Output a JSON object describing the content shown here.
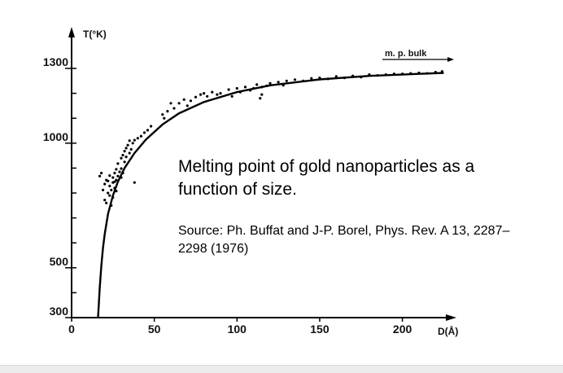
{
  "chart_data": {
    "type": "scatter",
    "ylabel": "T(°K)",
    "xlabel": "D(Å)",
    "xlim": [
      0,
      225
    ],
    "ylim": [
      300,
      1350
    ],
    "x_ticks": [
      0,
      50,
      100,
      150,
      200
    ],
    "x_tick_labels": [
      "0",
      "50",
      "100",
      "150",
      "200"
    ],
    "y_ticks": [
      300,
      500,
      1000,
      1300
    ],
    "y_tick_labels": [
      "300",
      "500",
      "1000",
      "1300"
    ],
    "grid": false,
    "annotations": [
      {
        "text": "m. p. bulk",
        "y": 1336
      }
    ],
    "series": [
      {
        "kind": "points",
        "points": [
          [
            17,
            868
          ],
          [
            18,
            880
          ],
          [
            19,
            812
          ],
          [
            20,
            836
          ],
          [
            20,
            772
          ],
          [
            21,
            852
          ],
          [
            21,
            760
          ],
          [
            22,
            800
          ],
          [
            22,
            848
          ],
          [
            23,
            828
          ],
          [
            23,
            790
          ],
          [
            23,
            870
          ],
          [
            24,
            812
          ],
          [
            24,
            750
          ],
          [
            25,
            842
          ],
          [
            25,
            862
          ],
          [
            25,
            782
          ],
          [
            26,
            820
          ],
          [
            26,
            880
          ],
          [
            26,
            845
          ],
          [
            27,
            808
          ],
          [
            27,
            895
          ],
          [
            27,
            852
          ],
          [
            28,
            868
          ],
          [
            28,
            918
          ],
          [
            29,
            885
          ],
          [
            30,
            898
          ],
          [
            30,
            940
          ],
          [
            31,
            880
          ],
          [
            31,
            952
          ],
          [
            32,
            968
          ],
          [
            32,
            925
          ],
          [
            33,
            980
          ],
          [
            33,
            945
          ],
          [
            34,
            992
          ],
          [
            35,
            960
          ],
          [
            35,
            1010
          ],
          [
            36,
            975
          ],
          [
            37,
            1000
          ],
          [
            38,
            1012
          ],
          [
            40,
            1020
          ],
          [
            42,
            1028
          ],
          [
            44,
            1042
          ],
          [
            46,
            1052
          ],
          [
            48,
            1068
          ],
          [
            38,
            842
          ],
          [
            30,
            862
          ],
          [
            55,
            1115
          ],
          [
            58,
            1128
          ],
          [
            56,
            1100
          ],
          [
            60,
            1160
          ],
          [
            62,
            1140
          ],
          [
            65,
            1160
          ],
          [
            68,
            1175
          ],
          [
            70,
            1150
          ],
          [
            72,
            1170
          ],
          [
            75,
            1185
          ],
          [
            78,
            1195
          ],
          [
            80,
            1200
          ],
          [
            82,
            1188
          ],
          [
            85,
            1205
          ],
          [
            88,
            1195
          ],
          [
            90,
            1200
          ],
          [
            95,
            1215
          ],
          [
            97,
            1188
          ],
          [
            100,
            1220
          ],
          [
            102,
            1205
          ],
          [
            105,
            1225
          ],
          [
            108,
            1212
          ],
          [
            110,
            1220
          ],
          [
            112,
            1235
          ],
          [
            114,
            1180
          ],
          [
            115,
            1225
          ],
          [
            115,
            1195
          ],
          [
            118,
            1230
          ],
          [
            120,
            1240
          ],
          [
            125,
            1245
          ],
          [
            128,
            1232
          ],
          [
            130,
            1250
          ],
          [
            135,
            1255
          ],
          [
            140,
            1250
          ],
          [
            145,
            1260
          ],
          [
            150,
            1262
          ],
          [
            155,
            1258
          ],
          [
            160,
            1268
          ],
          [
            165,
            1262
          ],
          [
            170,
            1270
          ],
          [
            175,
            1265
          ],
          [
            180,
            1275
          ],
          [
            185,
            1272
          ],
          [
            190,
            1275
          ],
          [
            195,
            1278
          ],
          [
            200,
            1278
          ],
          [
            205,
            1280
          ],
          [
            210,
            1282
          ],
          [
            215,
            1280
          ],
          [
            220,
            1285
          ],
          [
            224,
            1288
          ]
        ]
      },
      {
        "kind": "fit-curve",
        "points": [
          [
            16,
            300
          ],
          [
            17,
            420
          ],
          [
            18,
            510
          ],
          [
            19,
            580
          ],
          [
            20,
            635
          ],
          [
            22,
            715
          ],
          [
            25,
            790
          ],
          [
            28,
            845
          ],
          [
            32,
            900
          ],
          [
            38,
            960
          ],
          [
            45,
            1015
          ],
          [
            55,
            1075
          ],
          [
            65,
            1120
          ],
          [
            80,
            1165
          ],
          [
            100,
            1205
          ],
          [
            120,
            1232
          ],
          [
            150,
            1256
          ],
          [
            180,
            1270
          ],
          [
            210,
            1278
          ],
          [
            225,
            1282
          ]
        ]
      }
    ]
  },
  "caption": {
    "title": "Melting point of gold nanoparticles as a function of size.",
    "source": "Source: Ph. Buffat and J-P. Borel, Phys. Rev. A 13, 2287–2298 (1976)"
  }
}
